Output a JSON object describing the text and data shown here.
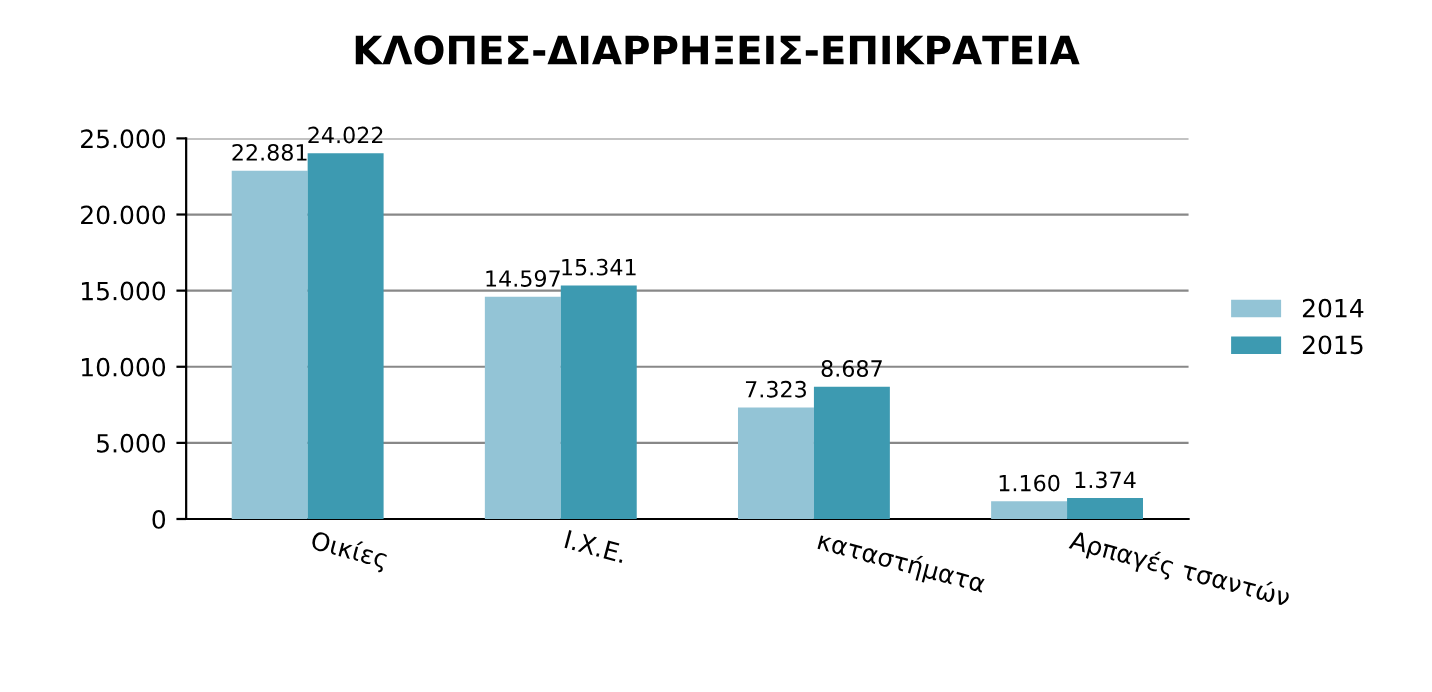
{
  "chart_data": {
    "type": "bar",
    "title": "ΚΛΟΠΕΣ-ΔΙΑΡΡΗΞΕΙΣ-ΕΠΙΚΡΑΤΕΙΑ",
    "categories": [
      "Οικίες",
      "Ι.Χ.Ε.",
      "καταστήματα",
      "Αρπαγές τσαντών"
    ],
    "series": [
      {
        "name": "2014",
        "color": "#93c4d6",
        "values": [
          22881,
          14597,
          7323,
          1160
        ],
        "value_labels": [
          "22.881",
          "14.597",
          "7.323",
          "1.160"
        ]
      },
      {
        "name": "2015",
        "color": "#3d9ab1",
        "values": [
          24022,
          15341,
          8687,
          1374
        ],
        "value_labels": [
          "24.022",
          "15.341",
          "8.687",
          "1.374"
        ]
      }
    ],
    "ylim": [
      0,
      25000
    ],
    "yticks": [
      0,
      {
        "value": 5000,
        "label": "5.000"
      },
      {
        "value": 10000,
        "label": "10.000"
      },
      {
        "value": 15000,
        "label": "15.000"
      },
      {
        "value": 20000,
        "label": "20.000"
      },
      {
        "value": 25000,
        "label": "25.000"
      }
    ],
    "grid": "y",
    "legend": "right"
  }
}
